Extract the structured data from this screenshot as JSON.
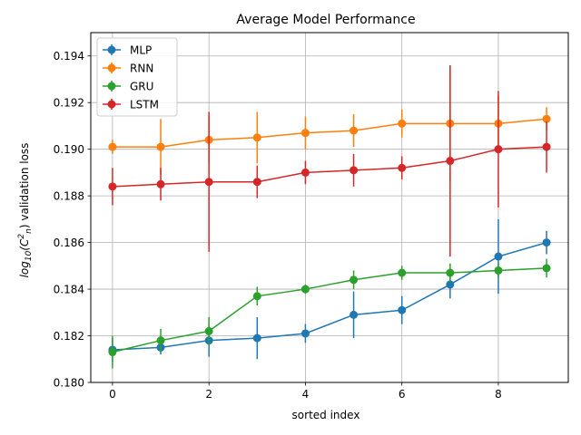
{
  "chart_data": {
    "type": "line",
    "title": "Average Model Performance",
    "xlabel": "sorted index",
    "ylabel_parts": {
      "base": "log",
      "sub1": "10",
      "mid": "(C",
      "sup": "2",
      "sub2": "n",
      "tail": ") validation loss"
    },
    "xlim": [
      -0.45,
      9.45
    ],
    "ylim": [
      0.18,
      0.195
    ],
    "xticks": [
      0,
      2,
      4,
      6,
      8
    ],
    "xtick_labels": [
      "0",
      "2",
      "4",
      "6",
      "8"
    ],
    "yticks": [
      0.18,
      0.182,
      0.184,
      0.186,
      0.188,
      0.19,
      0.192,
      0.194
    ],
    "ytick_labels": [
      "0.180",
      "0.182",
      "0.184",
      "0.186",
      "0.188",
      "0.190",
      "0.192",
      "0.194"
    ],
    "grid": true,
    "legend_position": "top-left",
    "x": [
      0,
      1,
      2,
      3,
      4,
      5,
      6,
      7,
      8,
      9
    ],
    "series": [
      {
        "name": "MLP",
        "color": "#1f77b4",
        "values": [
          0.1814,
          0.1815,
          0.1818,
          0.1819,
          0.1821,
          0.1829,
          0.1831,
          0.1842,
          0.1854,
          0.186
        ],
        "errors": [
          0.0005,
          0.0003,
          0.0007,
          0.0009,
          0.0004,
          0.001,
          0.0006,
          0.0006,
          0.0016,
          0.0005
        ]
      },
      {
        "name": "RNN",
        "color": "#ff7f0e",
        "values": [
          0.1901,
          0.1901,
          0.1904,
          0.1905,
          0.1907,
          0.1908,
          0.1911,
          0.1911,
          0.1911,
          0.1913
        ],
        "errors": [
          0.0003,
          0.0012,
          0.001,
          0.0011,
          0.0007,
          0.0007,
          0.0006,
          0.0025,
          0.0012,
          0.0005
        ]
      },
      {
        "name": "GRU",
        "color": "#2ca02c",
        "values": [
          0.1813,
          0.1818,
          0.1822,
          0.1837,
          0.184,
          0.1844,
          0.1847,
          0.1847,
          0.1848,
          0.1849
        ],
        "errors": [
          0.0007,
          0.0005,
          0.0006,
          0.0004,
          0.0002,
          0.0004,
          0.0003,
          0.0004,
          0.0003,
          0.0004
        ]
      },
      {
        "name": "LSTM",
        "color": "#d62728",
        "values": [
          0.1884,
          0.1885,
          0.1886,
          0.1886,
          0.189,
          0.1891,
          0.1892,
          0.1895,
          0.19,
          0.1901
        ],
        "errors": [
          0.0008,
          0.0007,
          0.003,
          0.0007,
          0.0005,
          0.0007,
          0.0005,
          0.0041,
          0.0025,
          0.0011
        ]
      }
    ]
  }
}
